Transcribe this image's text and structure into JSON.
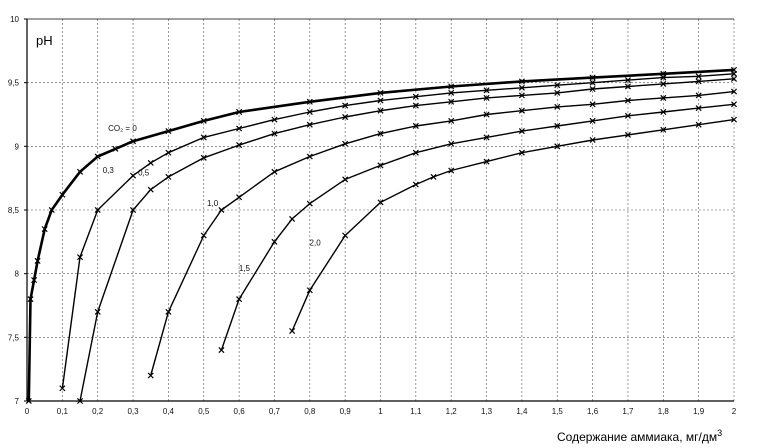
{
  "chart_data": {
    "type": "line",
    "xlabel": "Содержание аммиака, мг/дм",
    "xlabel_sup": "3",
    "ylabel": "pH",
    "xlim": [
      0,
      2
    ],
    "ylim": [
      7,
      10
    ],
    "grid": true,
    "x_ticks": [
      "0",
      "0,1",
      "0,2",
      "0,3",
      "0,4",
      "0,5",
      "0,6",
      "0,7",
      "0,8",
      "0,9",
      "1",
      "1,1",
      "1,2",
      "1,3",
      "1,4",
      "1,5",
      "1,6",
      "1,7",
      "1,8",
      "1,9",
      "2"
    ],
    "y_ticks": [
      "7",
      "7,5",
      "8",
      "8,5",
      "9",
      "9,5",
      "10"
    ],
    "series": [
      {
        "name": "CO₂ = 0",
        "label_at": [
          0.27,
          9.12
        ],
        "x": [
          0.005,
          0.01,
          0.02,
          0.03,
          0.05,
          0.07,
          0.1,
          0.15,
          0.2,
          0.25,
          0.3,
          0.4,
          0.5,
          0.6,
          0.8,
          1.0,
          1.2,
          1.4,
          1.6,
          1.8,
          2.0
        ],
        "y": [
          7.0,
          7.8,
          7.95,
          8.1,
          8.35,
          8.5,
          8.62,
          8.8,
          8.92,
          8.98,
          9.04,
          9.12,
          9.2,
          9.27,
          9.35,
          9.42,
          9.47,
          9.51,
          9.54,
          9.57,
          9.6
        ]
      },
      {
        "name": "0,3",
        "label_at": [
          0.23,
          8.79
        ],
        "x": [
          0.1,
          0.15,
          0.2,
          0.3,
          0.35,
          0.4,
          0.5,
          0.6,
          0.7,
          0.8,
          0.9,
          1.0,
          1.1,
          1.2,
          1.3,
          1.4,
          1.5,
          1.6,
          1.7,
          1.8,
          1.9,
          2.0
        ],
        "y": [
          7.1,
          8.13,
          8.5,
          8.77,
          8.87,
          8.95,
          9.07,
          9.14,
          9.21,
          9.27,
          9.32,
          9.36,
          9.39,
          9.42,
          9.44,
          9.46,
          9.48,
          9.5,
          9.52,
          9.54,
          9.55,
          9.57
        ]
      },
      {
        "name": "0,5",
        "label_at": [
          0.33,
          8.77
        ],
        "x": [
          0.15,
          0.2,
          0.3,
          0.35,
          0.4,
          0.5,
          0.6,
          0.7,
          0.8,
          0.9,
          1.0,
          1.1,
          1.2,
          1.3,
          1.4,
          1.5,
          1.6,
          1.7,
          1.8,
          1.9,
          2.0
        ],
        "y": [
          7.0,
          7.7,
          8.5,
          8.66,
          8.76,
          8.91,
          9.01,
          9.1,
          9.17,
          9.23,
          9.28,
          9.32,
          9.35,
          9.38,
          9.4,
          9.42,
          9.45,
          9.47,
          9.49,
          9.51,
          9.53
        ]
      },
      {
        "name": "1,0",
        "label_at": [
          0.525,
          8.53
        ],
        "x": [
          0.35,
          0.4,
          0.5,
          0.55,
          0.6,
          0.7,
          0.8,
          0.9,
          1.0,
          1.1,
          1.2,
          1.3,
          1.4,
          1.5,
          1.6,
          1.7,
          1.8,
          1.9,
          2.0
        ],
        "y": [
          7.2,
          7.7,
          8.3,
          8.5,
          8.6,
          8.8,
          8.92,
          9.02,
          9.1,
          9.16,
          9.2,
          9.25,
          9.28,
          9.31,
          9.33,
          9.36,
          9.38,
          9.4,
          9.43
        ]
      },
      {
        "name": "1,5",
        "label_at": [
          0.615,
          8.02
        ],
        "x": [
          0.55,
          0.6,
          0.7,
          0.75,
          0.8,
          0.9,
          1.0,
          1.1,
          1.2,
          1.3,
          1.4,
          1.5,
          1.6,
          1.7,
          1.8,
          1.9,
          2.0
        ],
        "y": [
          7.4,
          7.8,
          8.25,
          8.43,
          8.55,
          8.74,
          8.85,
          8.95,
          9.02,
          9.07,
          9.12,
          9.16,
          9.2,
          9.24,
          9.27,
          9.3,
          9.33
        ]
      },
      {
        "name": "2,0",
        "label_at": [
          0.815,
          8.22
        ],
        "x": [
          0.75,
          0.8,
          0.9,
          1.0,
          1.1,
          1.15,
          1.2,
          1.3,
          1.4,
          1.5,
          1.6,
          1.7,
          1.8,
          1.9,
          2.0
        ],
        "y": [
          7.55,
          7.87,
          8.3,
          8.56,
          8.7,
          8.76,
          8.81,
          8.88,
          8.95,
          9.0,
          9.05,
          9.09,
          9.13,
          9.17,
          9.21
        ]
      }
    ]
  }
}
